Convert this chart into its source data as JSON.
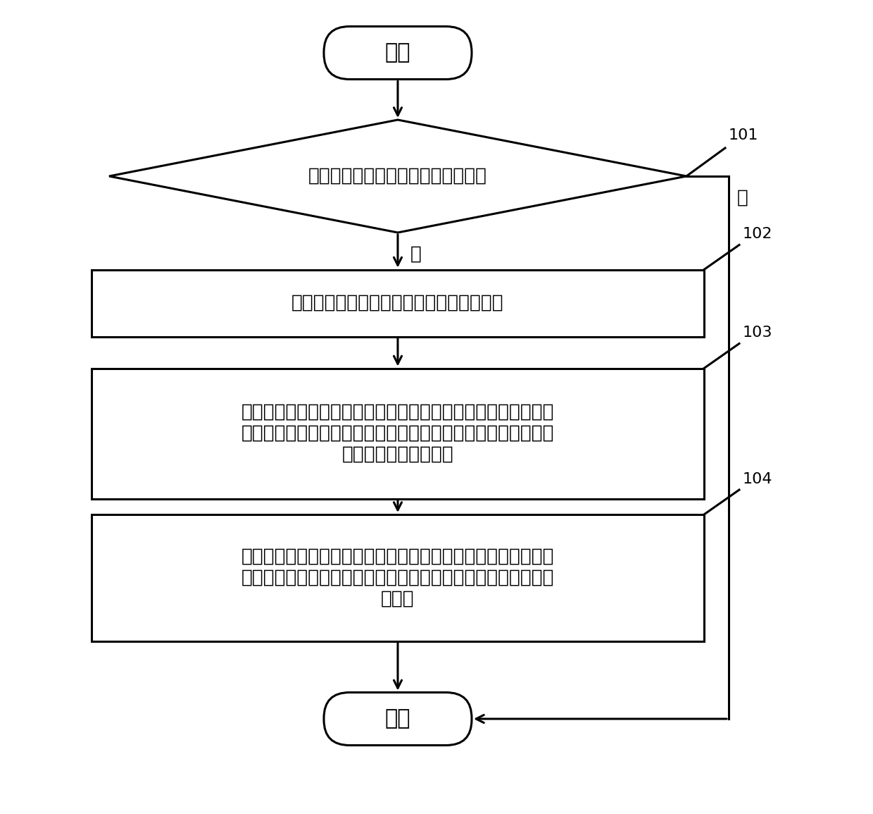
{
  "bg_color": "#ffffff",
  "line_color": "#000000",
  "fill_color": "#ffffff",
  "text_color": "#000000",
  "font_size_large": 22,
  "font_size_medium": 19,
  "font_size_small": 16,
  "start_label": "开始",
  "end_label": "结束",
  "diamond_label": "终端设备检测用户是否处于驾驶状态",
  "box1_label": "终端设备启动终端设备的身体疲劳检测功能",
  "box2_line1": "在上述身体疲劳检测功能下，终端设备通过终端设备上的心率传",
  "box2_line2": "感器监测用户的身体心率値，并根据监测到的身体心率値确定用",
  "box2_line3": "户的当前心率波动规律",
  "box3_line1": "当上述当前心率波动规律与预设心率波动规律相匹配时，终端设",
  "box3_line2": "备确定用户处于疲劳驾驶状态，并输出针对该疲劳驾驶状态的预",
  "box3_line3": "警消息",
  "label_101": "101",
  "label_102": "102",
  "label_103": "103",
  "label_104": "104",
  "yes_label": "是",
  "no_label": "否"
}
